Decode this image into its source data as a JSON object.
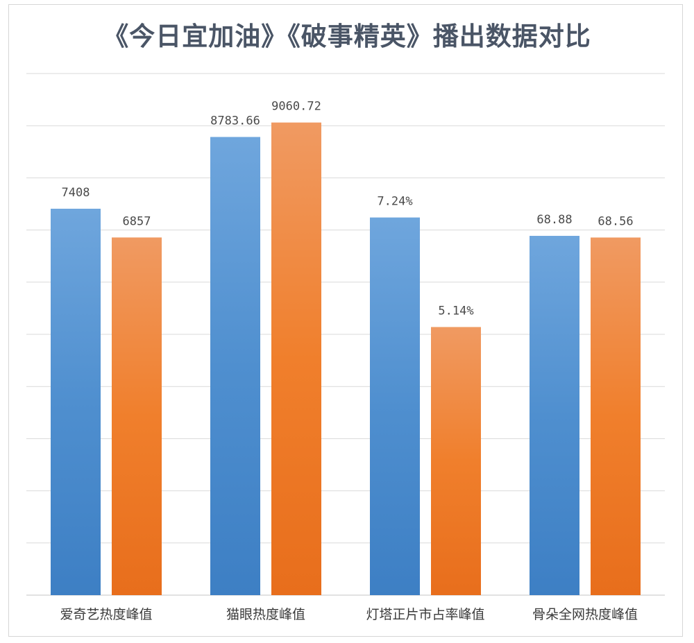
{
  "chart_data": {
    "type": "bar",
    "title": "《今日宜加油》《破事精英》播出数据对比",
    "categories": [
      "爱奇艺热度峰值",
      "猫眼热度峰值",
      "灯塔正片市占率峰值",
      "骨朵全网热度峰值"
    ],
    "series": [
      {
        "values": [
          7408,
          8783.66,
          7.24,
          68.88
        ],
        "labels": [
          "7408",
          "8783.66",
          "7.24%",
          "68.88"
        ]
      },
      {
        "values": [
          6857,
          9060.72,
          5.14,
          68.56
        ],
        "labels": [
          "6857",
          "9060.72",
          "5.14%",
          "68.56"
        ]
      }
    ],
    "category_max": [
      10000,
      10000,
      10,
      100
    ],
    "grid": true,
    "colors": {
      "series1": [
        "#6fa6dd",
        "#4f8fcf",
        "#3d7fc4"
      ],
      "series2": [
        "#f09a62",
        "#f07f2c",
        "#e86e1c"
      ],
      "grid": "#d9d9d9",
      "title": "#4a5566"
    }
  }
}
